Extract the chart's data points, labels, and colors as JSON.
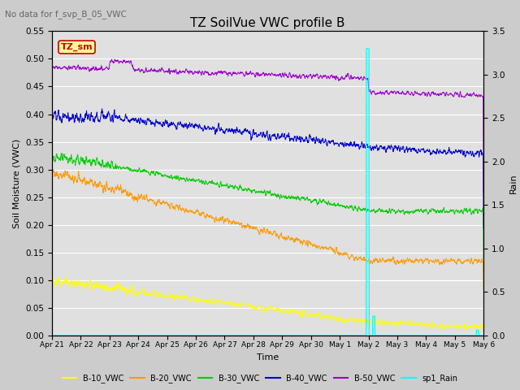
{
  "title": "TZ SoilVue VWC profile B",
  "subtitle": "No data for f_svp_B_05_VWC",
  "xlabel": "Time",
  "ylabel_left": "Soil Moisture (VWC)",
  "ylabel_right": "Rain",
  "ylim_left": [
    0.0,
    0.55
  ],
  "ylim_right": [
    0.0,
    3.5
  ],
  "background_color": "#cccccc",
  "plot_bg_color": "#e0e0e0",
  "line_colors": {
    "B10": "#ffff00",
    "B20": "#ff9900",
    "B30": "#00cc00",
    "B40": "#0000cc",
    "B50": "#9900cc",
    "rain": "#00ffff"
  },
  "legend_labels": [
    "B-10_VWC",
    "B-20_VWC",
    "B-30_VWC",
    "B-40_VWC",
    "B-50_VWC",
    "sp1_Rain"
  ],
  "tz_sm_box_color": "#ffff99",
  "tz_sm_border_color": "#cc0000",
  "x_tick_labels": [
    "Apr 21",
    "Apr 22",
    "Apr 23",
    "Apr 24",
    "Apr 25",
    "Apr 26",
    "Apr 27",
    "Apr 28",
    "Apr 29",
    "Apr 30",
    "May 1",
    "May 2",
    "May 3",
    "May 4",
    "May 5",
    "May 6"
  ]
}
